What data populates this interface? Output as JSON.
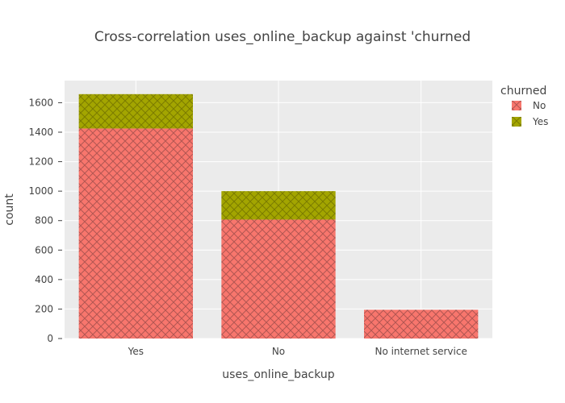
{
  "chart_data": {
    "type": "bar",
    "barmode": "stack",
    "title": "Cross-correlation uses_online_backup against 'churned",
    "xlabel": "uses_online_backup",
    "ylabel": "count",
    "categories": [
      "Yes",
      "No",
      "No internet service"
    ],
    "series": [
      {
        "name": "No",
        "values": [
          1425,
          807,
          195
        ],
        "color": "#F8766D",
        "pattern": "crosshatch"
      },
      {
        "name": "Yes",
        "values": [
          233,
          193,
          0
        ],
        "color": "#A3A500",
        "pattern": "crosshatch"
      }
    ],
    "ylim": [
      0,
      1750
    ],
    "yticks": [
      0,
      200,
      400,
      600,
      800,
      1000,
      1200,
      1400,
      1600
    ],
    "ytick_labels": [
      "0",
      "200",
      "400",
      "600",
      "800",
      "1000",
      "1200",
      "1400",
      "1600"
    ],
    "grid": true,
    "plot_background": "#EBEBEB",
    "legend": {
      "title": "churned",
      "position": "top-right"
    }
  }
}
